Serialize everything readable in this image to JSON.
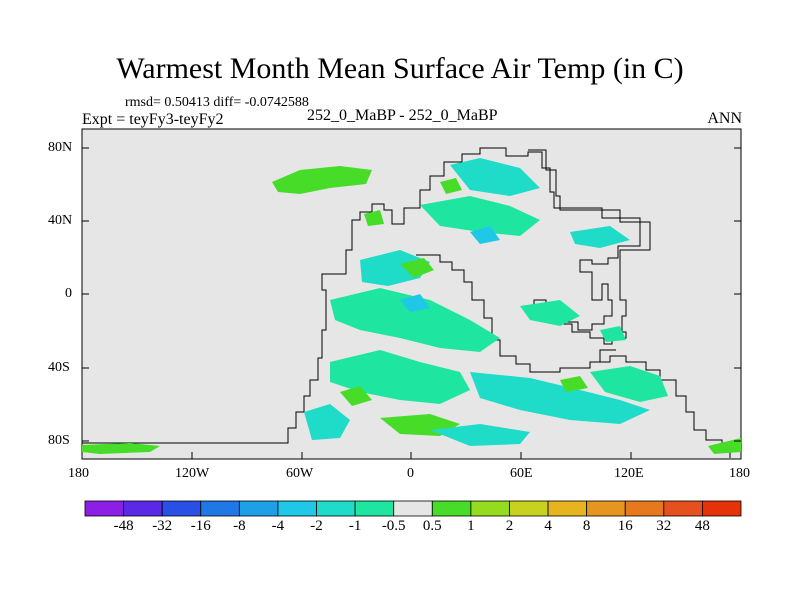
{
  "title": "Warmest Month Mean Surface Air Temp (in C)",
  "stats": "rmsd= 0.50413  diff= -0.0742588",
  "experiment": "Expt = teyFy3-teyFy2",
  "case": "252_0_MaBP - 252_0_MaBP",
  "period": "ANN",
  "axes": {
    "x_ticks": [
      "180",
      "120W",
      "60W",
      "0",
      "60E",
      "120E",
      "180"
    ],
    "y_ticks": [
      "80N",
      "40N",
      "0",
      "40S",
      "80S"
    ]
  },
  "colorbar": {
    "labels": [
      "-48",
      "-32",
      "-16",
      "-8",
      "-4",
      "-2",
      "-1",
      "-0.5",
      "0.5",
      "1",
      "2",
      "4",
      "8",
      "16",
      "32",
      "48"
    ],
    "colors": [
      "#8c1ee6",
      "#5a28e6",
      "#2850e6",
      "#1e78e6",
      "#1ea0e6",
      "#1ec8e6",
      "#1edcc8",
      "#1ee6a0",
      "#e6e6e6",
      "#46dc28",
      "#96dc1e",
      "#c8d21e",
      "#e6b41e",
      "#e6961e",
      "#e6781e",
      "#e6501e",
      "#e6320a"
    ]
  }
}
